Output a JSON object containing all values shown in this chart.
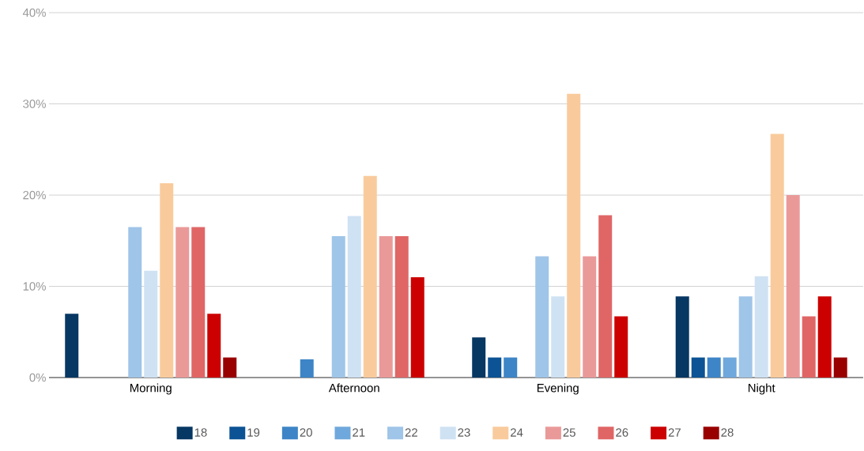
{
  "chart_data": {
    "type": "bar",
    "categories": [
      "Morning",
      "Afternoon",
      "Evening",
      "Night"
    ],
    "series": [
      {
        "name": "18",
        "color": "#073763",
        "values": [
          7.0,
          0,
          4.4,
          8.9
        ]
      },
      {
        "name": "19",
        "color": "#0b5394",
        "values": [
          0,
          0,
          2.2,
          2.2
        ]
      },
      {
        "name": "20",
        "color": "#3d85c6",
        "values": [
          0,
          2.0,
          2.2,
          2.2
        ]
      },
      {
        "name": "21",
        "color": "#6fa8dc",
        "values": [
          0,
          0,
          0,
          2.2
        ]
      },
      {
        "name": "22",
        "color": "#9fc5e8",
        "values": [
          16.5,
          15.5,
          13.3,
          8.9
        ]
      },
      {
        "name": "23",
        "color": "#cfe2f3",
        "values": [
          11.7,
          17.7,
          8.9,
          11.1
        ]
      },
      {
        "name": "24",
        "color": "#f9cb9c",
        "values": [
          21.3,
          22.1,
          31.1,
          26.7
        ]
      },
      {
        "name": "25",
        "color": "#ea9999",
        "values": [
          16.5,
          15.5,
          13.3,
          20.0
        ]
      },
      {
        "name": "26",
        "color": "#e06666",
        "values": [
          16.5,
          15.5,
          17.8,
          6.7
        ]
      },
      {
        "name": "27",
        "color": "#cc0000",
        "values": [
          7.0,
          11.0,
          6.7,
          8.9
        ]
      },
      {
        "name": "28",
        "color": "#990000",
        "values": [
          2.2,
          0,
          0,
          2.2
        ]
      }
    ],
    "ylim": [
      0,
      40
    ],
    "yticks": [
      {
        "value": 0,
        "label": "0%"
      },
      {
        "value": 10,
        "label": "10%"
      },
      {
        "value": 20,
        "label": "20%"
      },
      {
        "value": 30,
        "label": "30%"
      },
      {
        "value": 40,
        "label": "40%"
      }
    ],
    "grid": "y",
    "legend": "bottom"
  }
}
